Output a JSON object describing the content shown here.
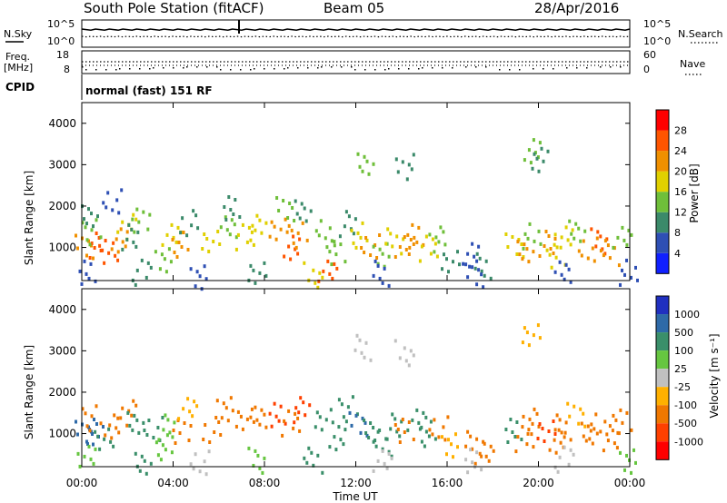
{
  "header": {
    "station": "South Pole Station (fitACF)",
    "beam": "Beam 05",
    "date": "28/Apr/2016"
  },
  "top_panels": {
    "nsky_label": "N.Sky",
    "nsearch_label": "N.Search",
    "noise_ticks_left": [
      "10^5",
      "10^0"
    ],
    "noise_ticks_right": [
      "10^5",
      "10^0"
    ],
    "freq_label_line1": "Freq.",
    "freq_label_line2": "[MHz]",
    "freq_ticks": [
      "18",
      "8"
    ],
    "nave_label": "Nave",
    "nave_ticks": [
      "60",
      "0"
    ],
    "cpid_label": "CPID",
    "cpid_value": "normal (fast) 151 RF"
  },
  "chart_data": [
    {
      "type": "heatmap",
      "name": "power",
      "ylabel": "Slant Range [km]",
      "yticks": [
        "1000",
        "2000",
        "3000",
        "4000"
      ],
      "ylim": [
        200,
        4500
      ],
      "colorbar_label": "Power [dB]",
      "colorbar_ticks": [
        "4",
        "8",
        "12",
        "16",
        "20",
        "24",
        "28"
      ],
      "colorbar_colors": [
        "#1020ff",
        "#2e4fb4",
        "#3b8a6a",
        "#6fbf3a",
        "#e0d000",
        "#f09000",
        "#ff5500",
        "#ff0000"
      ],
      "cells": [
        [
          0.0,
          1000,
          24
        ],
        [
          0.5,
          1100,
          26
        ],
        [
          1.0,
          950,
          28
        ],
        [
          1.5,
          1200,
          22
        ],
        [
          0.3,
          1400,
          16
        ],
        [
          1.8,
          1500,
          18
        ],
        [
          0.2,
          1800,
          10
        ],
        [
          1.2,
          2100,
          6
        ],
        [
          2.0,
          1300,
          12
        ],
        [
          2.4,
          1700,
          14
        ],
        [
          3.8,
          1300,
          20
        ],
        [
          4.2,
          1100,
          24
        ],
        [
          4.5,
          1600,
          12
        ],
        [
          3.5,
          700,
          16
        ],
        [
          5.5,
          1100,
          18
        ],
        [
          6.2,
          1600,
          14
        ],
        [
          6.5,
          2000,
          10
        ],
        [
          7.0,
          1300,
          18
        ],
        [
          7.5,
          1500,
          20
        ],
        [
          8.5,
          1500,
          22
        ],
        [
          9.0,
          1000,
          28
        ],
        [
          9.3,
          1300,
          24
        ],
        [
          8.8,
          2000,
          14
        ],
        [
          9.5,
          1900,
          12
        ],
        [
          10.5,
          1400,
          16
        ],
        [
          11.5,
          1600,
          12
        ],
        [
          11.0,
          900,
          14
        ],
        [
          10.6,
          400,
          26
        ],
        [
          12.0,
          1300,
          18
        ],
        [
          12.5,
          1100,
          22
        ],
        [
          13.0,
          800,
          14
        ],
        [
          13.5,
          1200,
          20
        ],
        [
          14.0,
          1100,
          24
        ],
        [
          14.5,
          1300,
          22
        ],
        [
          15.0,
          1000,
          18
        ],
        [
          15.5,
          1200,
          14
        ],
        [
          16.0,
          700,
          10
        ],
        [
          16.8,
          800,
          8
        ],
        [
          17.5,
          600,
          10
        ],
        [
          18.8,
          1100,
          18
        ],
        [
          19.2,
          900,
          22
        ],
        [
          19.6,
          1300,
          14
        ],
        [
          20.2,
          1100,
          24
        ],
        [
          20.6,
          800,
          20
        ],
        [
          21.0,
          1200,
          18
        ],
        [
          21.5,
          1500,
          16
        ],
        [
          22.0,
          1000,
          24
        ],
        [
          22.5,
          1200,
          28
        ],
        [
          23.0,
          900,
          22
        ],
        [
          23.5,
          1300,
          16
        ],
        [
          0.1,
          400,
          8
        ],
        [
          2.5,
          400,
          10
        ],
        [
          5.0,
          350,
          8
        ],
        [
          7.5,
          400,
          12
        ],
        [
          10.0,
          380,
          20
        ],
        [
          13.0,
          400,
          8
        ],
        [
          17.0,
          350,
          6
        ],
        [
          21.0,
          380,
          8
        ],
        [
          23.8,
          400,
          6
        ],
        [
          19.5,
          3400,
          16
        ],
        [
          20.0,
          3100,
          12
        ],
        [
          14.0,
          3000,
          10
        ],
        [
          12.2,
          3100,
          14
        ]
      ]
    },
    {
      "type": "heatmap",
      "name": "velocity",
      "ylabel": "Slant Range [km]",
      "yticks": [
        "1000",
        "2000",
        "3000",
        "4000"
      ],
      "ylim": [
        200,
        4500
      ],
      "colorbar_label": "Velocity [m s⁻¹]",
      "colorbar_ticks": [
        "1000",
        "500",
        "100",
        "25",
        "-25",
        "-100",
        "-500",
        "-1000"
      ],
      "colorbar_colors": [
        "#2030c0",
        "#2e6aa8",
        "#3a8f6a",
        "#66c640",
        "#c0c0c0",
        "#ffb000",
        "#f07800",
        "#ff4000",
        "#ff0000"
      ],
      "cells": [
        [
          0.0,
          1000,
          800
        ],
        [
          0.4,
          1100,
          500
        ],
        [
          0.8,
          950,
          300
        ],
        [
          1.2,
          1200,
          -200
        ],
        [
          0.3,
          1400,
          -300
        ],
        [
          1.8,
          1500,
          -500
        ],
        [
          2.2,
          1300,
          200
        ],
        [
          3.0,
          1100,
          100
        ],
        [
          3.6,
          1200,
          60
        ],
        [
          4.2,
          1100,
          -150
        ],
        [
          4.5,
          1600,
          -100
        ],
        [
          3.5,
          700,
          50
        ],
        [
          5.5,
          1100,
          -300
        ],
        [
          6.2,
          1600,
          -400
        ],
        [
          7.0,
          1300,
          -200
        ],
        [
          7.5,
          1500,
          -300
        ],
        [
          8.5,
          1500,
          -600
        ],
        [
          9.0,
          1300,
          -500
        ],
        [
          9.4,
          1600,
          -700
        ],
        [
          10.5,
          1400,
          200
        ],
        [
          11.0,
          900,
          400
        ],
        [
          11.5,
          1600,
          250
        ],
        [
          12.0,
          1300,
          500
        ],
        [
          12.5,
          1100,
          300
        ],
        [
          13.0,
          800,
          150
        ],
        [
          13.5,
          1200,
          400
        ],
        [
          14.0,
          1100,
          -300
        ],
        [
          14.5,
          1300,
          300
        ],
        [
          15.0,
          1000,
          200
        ],
        [
          15.5,
          1200,
          -200
        ],
        [
          16.0,
          700,
          -100
        ],
        [
          17.0,
          800,
          -400
        ],
        [
          17.5,
          600,
          -300
        ],
        [
          18.8,
          1100,
          250
        ],
        [
          19.2,
          900,
          -500
        ],
        [
          19.6,
          1300,
          -300
        ],
        [
          20.2,
          1100,
          -600
        ],
        [
          20.6,
          800,
          -200
        ],
        [
          21.0,
          1200,
          -300
        ],
        [
          21.5,
          1500,
          -100
        ],
        [
          22.0,
          1000,
          -400
        ],
        [
          22.5,
          1200,
          -300
        ],
        [
          23.0,
          900,
          -200
        ],
        [
          23.5,
          1300,
          -500
        ],
        [
          0.1,
          400,
          30
        ],
        [
          2.5,
          380,
          100
        ],
        [
          5.0,
          350,
          20
        ],
        [
          7.5,
          400,
          60
        ],
        [
          10.0,
          380,
          300
        ],
        [
          13.0,
          400,
          20
        ],
        [
          17.0,
          350,
          10
        ],
        [
          21.0,
          380,
          15
        ],
        [
          23.8,
          400,
          40
        ],
        [
          19.5,
          3400,
          -100
        ],
        [
          14.0,
          3000,
          20
        ],
        [
          12.2,
          3100,
          10
        ]
      ]
    }
  ],
  "xaxis": {
    "ticks": [
      "00:00",
      "04:00",
      "08:00",
      "12:00",
      "16:00",
      "20:00",
      "00:00"
    ],
    "label": "Time UT"
  }
}
